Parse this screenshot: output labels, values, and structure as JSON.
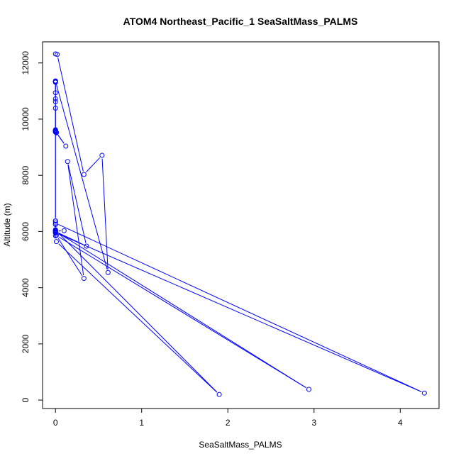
{
  "chart_data": {
    "type": "line",
    "title": "ATOM4 Northeast_Pacific_1 SeaSaltMass_PALMS",
    "xlabel": "SeaSaltMass_PALMS",
    "ylabel": "Altitude (m)",
    "xlim": [
      -0.15,
      4.45
    ],
    "ylim": [
      -300,
      12750
    ],
    "xticks": [
      0,
      1,
      2,
      3,
      4
    ],
    "yticks": [
      0,
      2000,
      4000,
      6000,
      8000,
      10000,
      12000
    ],
    "grid": false,
    "series_color": "#0000ff",
    "series": [
      {
        "x": [
          0.0,
          0.02,
          0.33,
          0.54,
          0.61,
          0.0,
          0.0,
          0.0,
          0.0,
          0.0,
          0.0,
          0.0,
          0.0,
          0.0,
          0.0,
          0.0,
          0.0,
          0.0,
          0.0,
          0.0,
          0.0,
          0.0,
          0.0,
          0.0,
          0.0,
          0.0,
          0.0,
          0.0,
          0.0,
          0.0,
          0.0,
          4.28,
          0.0,
          0.0,
          0.36,
          0.14,
          0.33,
          0.01,
          2.94,
          0.0,
          0.1,
          0.0,
          0.01,
          1.9,
          0.0,
          0.0,
          0.0,
          0.01,
          0.12,
          0.01
        ],
        "y": [
          12320,
          12300,
          8030,
          8710,
          4540,
          11350,
          11330,
          11310,
          10940,
          10720,
          10620,
          10390,
          9620,
          9570,
          9540,
          11360,
          11340,
          9560,
          9580,
          9600,
          9590,
          9570,
          6380,
          6250,
          6060,
          6030,
          6010,
          5980,
          5950,
          5850,
          6300,
          250,
          5960,
          6000,
          5480,
          8490,
          4330,
          5860,
          380,
          6010,
          6030,
          6010,
          5640,
          200,
          6050,
          6370,
          9540,
          9530,
          9040,
          9510
        ]
      }
    ]
  }
}
